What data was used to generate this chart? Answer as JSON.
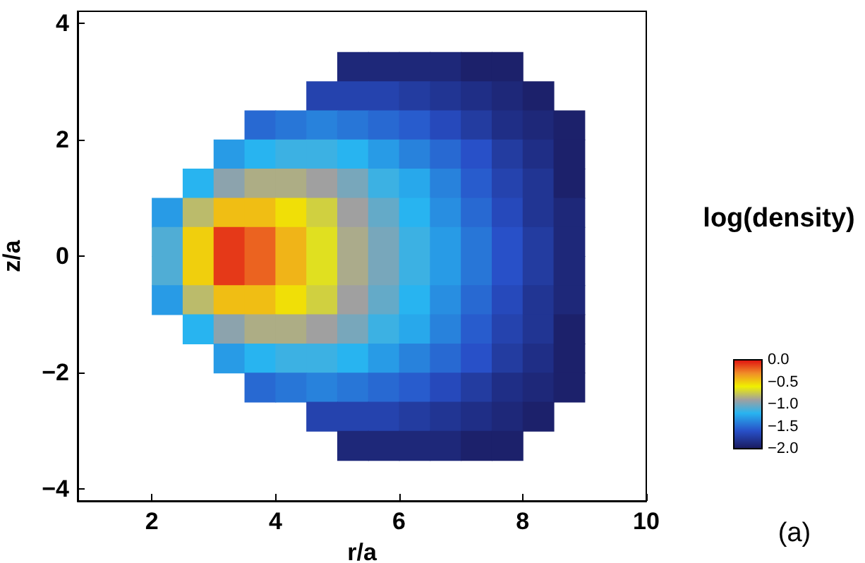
{
  "chart_data": {
    "type": "heatmap",
    "xlabel": "r/a",
    "ylabel": "z/a",
    "clabel": "log(density)",
    "annotations": [
      "(a)"
    ],
    "x": [
      2.25,
      2.75,
      3.25,
      3.75,
      4.25,
      4.75,
      5.25,
      5.75,
      6.25,
      6.75,
      7.25,
      7.75,
      8.25,
      8.75
    ],
    "y": [
      3.25,
      2.75,
      2.25,
      1.75,
      1.25,
      0.75,
      0.25,
      -0.25,
      -0.75,
      -1.25,
      -1.75,
      -2.25,
      -2.75,
      -3.25
    ],
    "cells": [
      [
        null,
        null,
        null,
        null,
        null,
        null,
        -1.9,
        -1.9,
        -1.9,
        -1.9,
        -1.95,
        -1.95,
        null,
        null
      ],
      [
        null,
        null,
        null,
        null,
        null,
        -1.7,
        -1.7,
        -1.7,
        -1.75,
        -1.8,
        -1.85,
        -1.9,
        -1.95,
        null
      ],
      [
        null,
        null,
        null,
        -1.5,
        -1.45,
        -1.4,
        -1.45,
        -1.5,
        -1.55,
        -1.65,
        -1.75,
        -1.85,
        -1.9,
        -1.95
      ],
      [
        null,
        null,
        -1.3,
        -1.2,
        -1.15,
        -1.15,
        -1.2,
        -1.3,
        -1.4,
        -1.5,
        -1.6,
        -1.75,
        -1.85,
        -1.95
      ],
      [
        null,
        -1.2,
        -0.95,
        -0.85,
        -0.85,
        -0.9,
        -1.0,
        -1.15,
        -1.25,
        -1.4,
        -1.55,
        -1.7,
        -1.8,
        -1.95
      ],
      [
        -1.3,
        -0.8,
        -0.45,
        -0.45,
        -0.55,
        -0.72,
        -0.9,
        -1.05,
        -1.2,
        -1.35,
        -1.5,
        -1.65,
        -1.8,
        -1.9
      ],
      [
        -1.1,
        -0.5,
        -0.1,
        -0.2,
        -0.42,
        -0.66,
        -0.86,
        -1.0,
        -1.15,
        -1.3,
        -1.45,
        -1.6,
        -1.75,
        -1.9
      ],
      [
        -1.1,
        -0.5,
        -0.1,
        -0.2,
        -0.42,
        -0.66,
        -0.86,
        -1.0,
        -1.15,
        -1.3,
        -1.45,
        -1.6,
        -1.75,
        -1.9
      ],
      [
        -1.3,
        -0.8,
        -0.45,
        -0.45,
        -0.55,
        -0.72,
        -0.9,
        -1.05,
        -1.2,
        -1.35,
        -1.5,
        -1.65,
        -1.8,
        -1.9
      ],
      [
        null,
        -1.2,
        -0.95,
        -0.85,
        -0.85,
        -0.9,
        -1.0,
        -1.15,
        -1.25,
        -1.4,
        -1.55,
        -1.7,
        -1.8,
        -1.95
      ],
      [
        null,
        null,
        -1.3,
        -1.2,
        -1.15,
        -1.15,
        -1.2,
        -1.3,
        -1.4,
        -1.5,
        -1.6,
        -1.75,
        -1.85,
        -1.95
      ],
      [
        null,
        null,
        null,
        -1.5,
        -1.45,
        -1.4,
        -1.45,
        -1.5,
        -1.55,
        -1.65,
        -1.75,
        -1.85,
        -1.9,
        -1.95
      ],
      [
        null,
        null,
        null,
        null,
        null,
        -1.7,
        -1.7,
        -1.7,
        -1.75,
        -1.8,
        -1.85,
        -1.9,
        -1.95,
        null
      ],
      [
        null,
        null,
        null,
        null,
        null,
        null,
        -1.9,
        -1.9,
        -1.9,
        -1.9,
        -1.95,
        -1.95,
        null,
        null
      ]
    ],
    "clim": [
      -2,
      0
    ],
    "cticks": [
      {
        "value": 0,
        "label": "0.0"
      },
      {
        "value": -0.5,
        "label": "−0.5"
      },
      {
        "value": -1,
        "label": "−1.0"
      },
      {
        "value": -1.5,
        "label": "−1.5"
      },
      {
        "value": -2,
        "label": "−2.0"
      }
    ],
    "xlim": [
      0.8,
      10
    ],
    "xticks": [
      2,
      4,
      6,
      8,
      10
    ],
    "ylim": [
      -4.2,
      4.2
    ],
    "yticks": [
      {
        "value": -4,
        "label": "−4"
      },
      {
        "value": -2,
        "label": "−2"
      },
      0,
      2,
      4
    ]
  }
}
